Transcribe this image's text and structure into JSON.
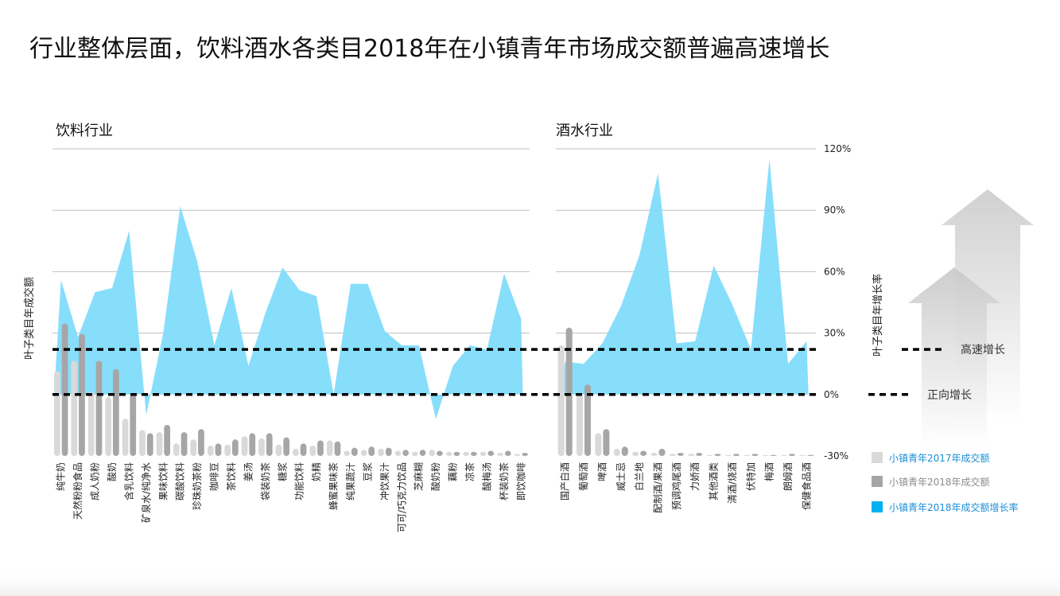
{
  "title": "行业整体层面，饮料酒水各类目2018年在小镇青年市场成交额普遍高速增长",
  "left_axis_label": "叶子类目年成交额",
  "right_axis_label": "叶子类目年增长率",
  "reference_lines": [
    {
      "label": "高速增长",
      "value": 22
    },
    {
      "label": "正向增长",
      "value": 0
    }
  ],
  "legend": [
    {
      "label": "小镇青年2017年成交额",
      "color": "#d9d9d9",
      "text_color": "#1a8fd6"
    },
    {
      "label": "小镇青年2018年成交额",
      "color": "#a6a6a6",
      "text_color": "#8c8c8c"
    },
    {
      "label": "小镇青年2018年成交额增长率",
      "color": "#00b0f0",
      "text_color": "#1a8fd6"
    }
  ],
  "colors": {
    "bar2017": "#d9d9d9",
    "bar2018": "#a6a6a6",
    "growth": "#7fdcfb",
    "grid": "#bfbfbf"
  },
  "chart_data": {
    "type": "bar",
    "y2_label": "叶子类目年增长率",
    "y2_ticks": [
      "120%",
      "90%",
      "60%",
      "30%",
      "0%",
      "-30%"
    ],
    "y2lim": [
      -30,
      120
    ],
    "panels": [
      {
        "name": "饮料行业",
        "categories": [
          "纯牛奶",
          "天然粉粉食品",
          "成人奶粉",
          "酸奶",
          "含乳饮料",
          "矿泉水/纯净水",
          "果味饮料",
          "碳酸饮料",
          "珍珠奶茶粉",
          "咖啡豆",
          "茶饮料",
          "姜汤",
          "袋装奶茶",
          "糖浆",
          "功能饮料",
          "奶精",
          "蜂蜜果味茶",
          "纯果蔬汁",
          "豆浆",
          "冲饮果汁",
          "可可/巧克力饮品",
          "芝麻糊",
          "酸奶粉",
          "藕粉",
          "凉茶",
          "酸梅汤",
          "杯装奶茶",
          "即饮咖啡"
        ],
        "series": [
          {
            "name": "小镇青年2017年成交额",
            "values": [
              82,
              92,
              62,
              57,
              36,
              25,
              23,
              12,
              16,
              10,
              11,
              19,
              17,
              11,
              7,
              10,
              15,
              5,
              6,
              7,
              5,
              4,
              6,
              4,
              4,
              4,
              3,
              2
            ]
          },
          {
            "name": "小镇青年2018年成交额",
            "values": [
              128,
              118,
              92,
              84,
              60,
              22,
              30,
              23,
              26,
              12,
              16,
              22,
              22,
              18,
              12,
              15,
              14,
              8,
              9,
              8,
              6,
              6,
              5,
              4,
              4,
              5,
              5,
              3
            ]
          },
          {
            "name": "小镇青年2018年成交额增长率",
            "values": [
              56,
              28,
              50,
              52,
              80,
              -10,
              30,
              92,
              65,
              24,
              52,
              14,
              40,
              62,
              51,
              48,
              0,
              54,
              54,
              31,
              24,
              24,
              -12,
              14,
              24,
              22,
              59,
              37
            ]
          }
        ]
      },
      {
        "name": "酒水行业",
        "categories": [
          "国产白酒",
          "葡萄酒",
          "啤酒",
          "威士忌",
          "白兰地",
          "配制酒/果酒",
          "预调鸡尾酒",
          "力娇酒",
          "其他酒类",
          "清酒/烧酒",
          "伏特加",
          "梅酒",
          "朗姆酒",
          "保健食品酒"
        ],
        "series": [
          {
            "name": "小镇青年2017年成交额",
            "values": [
              107,
              60,
              22,
              7,
              4,
              3,
              2,
              2,
              1,
              1,
              1,
              1,
              1,
              1
            ]
          },
          {
            "name": "小镇青年2018年成交额",
            "values": [
              124,
              69,
              26,
              9,
              5,
              7,
              3,
              3,
              2,
              2,
              2,
              1,
              2,
              1
            ]
          },
          {
            "name": "小镇青年2018年成交额增长率",
            "values": [
              16,
              15,
              25,
              43,
              68,
              108,
              25,
              26,
              63,
              44,
              22,
              115,
              15,
              26
            ]
          }
        ]
      }
    ]
  }
}
